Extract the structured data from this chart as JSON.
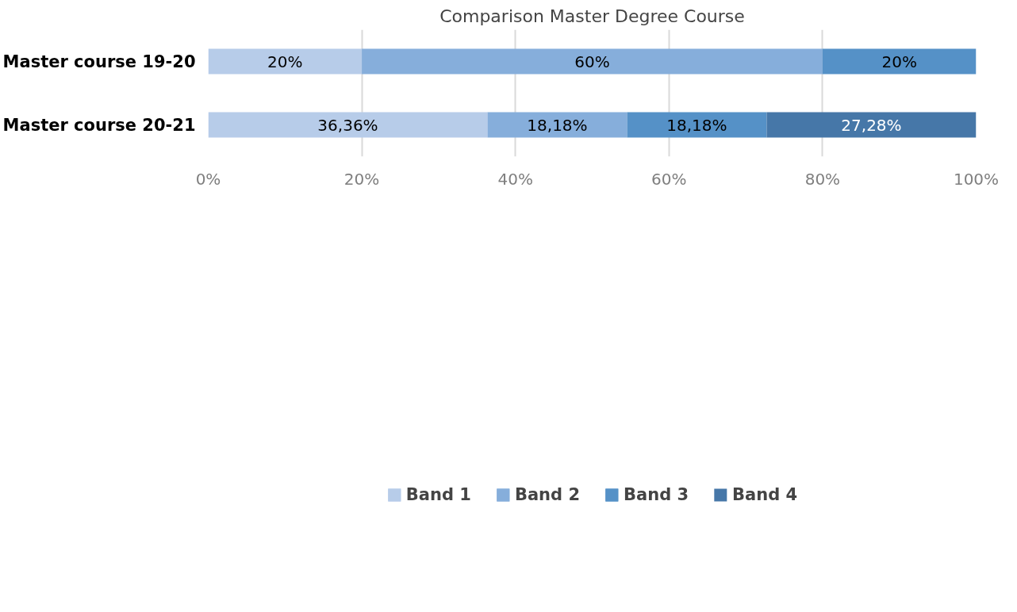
{
  "chart_data": {
    "type": "bar",
    "title": "Comparison Master Degree Course",
    "orientation": "horizontal",
    "stacked": true,
    "categories": [
      "Master course 19-20",
      "Master course 20-21"
    ],
    "series": [
      {
        "name": "Band 1",
        "color": "#b7cce9",
        "values": [
          20,
          36.36
        ],
        "value_labels": [
          "20%",
          "36,36%"
        ]
      },
      {
        "name": "Band 2",
        "color": "#86aedb",
        "values": [
          60,
          18.18
        ],
        "value_labels": [
          "60%",
          "18,18%"
        ]
      },
      {
        "name": "Band 3",
        "color": "#5591c7",
        "values": [
          20,
          18.18
        ],
        "value_labels": [
          "20%",
          "18,18%"
        ]
      },
      {
        "name": "Band 4",
        "color": "#4677a8",
        "values": [
          null,
          27.28
        ],
        "value_labels": [
          null,
          "27,28%"
        ]
      }
    ],
    "xlim": [
      0,
      100
    ],
    "xticks": [
      {
        "value": 0,
        "label": "0%"
      },
      {
        "value": 20,
        "label": "20%"
      },
      {
        "value": 40,
        "label": "40%"
      },
      {
        "value": 60,
        "label": "60%"
      },
      {
        "value": 80,
        "label": "80%"
      },
      {
        "value": 100,
        "label": "100%"
      }
    ],
    "grid": "x",
    "legend": "bottom"
  }
}
